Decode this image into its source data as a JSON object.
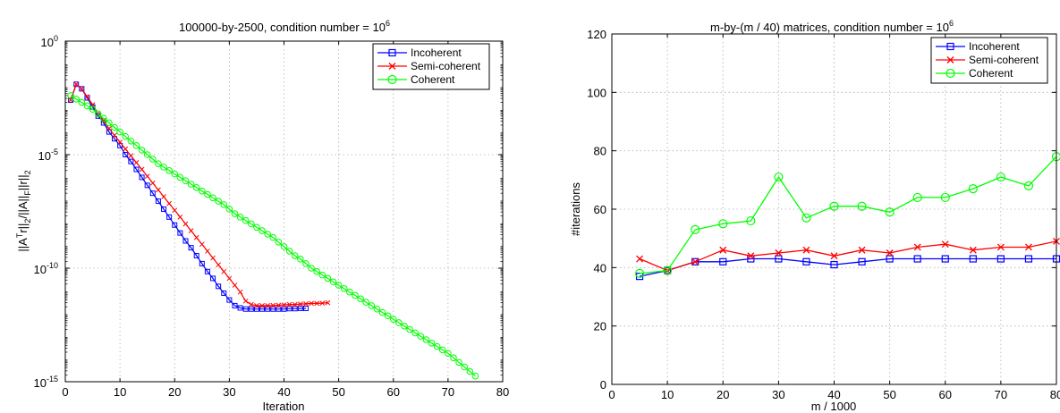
{
  "colors": {
    "incoherent": "#0000ff",
    "semi_coherent": "#ff0000",
    "coherent": "#00ff00"
  },
  "chart_data": [
    {
      "type": "line",
      "title": {
        "main": "100000-by-2500, condition number = 10",
        "sup": "6"
      },
      "xlabel": "Iteration",
      "ylabel": "||A^T r||_2/||A||_F||r||_2",
      "yscale": "log",
      "xlim": [
        0,
        80
      ],
      "ylim_exp": [
        -15,
        0
      ],
      "xticks": [
        "0",
        "10",
        "20",
        "30",
        "40",
        "50",
        "60",
        "70",
        "80"
      ],
      "yticks": [
        {
          "base": "10",
          "exp": "-15"
        },
        {
          "base": "10",
          "exp": "-10"
        },
        {
          "base": "10",
          "exp": "-5"
        },
        {
          "base": "10",
          "exp": "0"
        }
      ],
      "grid": true,
      "legend_position": "top-right",
      "series": [
        {
          "name": "Incoherent",
          "color": "#0000ff",
          "marker": "square",
          "x": [
            1,
            2,
            3,
            4,
            5,
            6,
            7,
            8,
            9,
            10,
            11,
            12,
            13,
            14,
            15,
            16,
            17,
            18,
            19,
            20,
            21,
            22,
            23,
            24,
            25,
            26,
            27,
            28,
            29,
            30,
            31,
            32,
            33,
            34,
            35,
            36,
            37,
            38,
            39,
            40,
            41,
            42,
            43,
            44
          ],
          "log10_y": [
            -2.6,
            -1.9,
            -2.1,
            -2.5,
            -2.9,
            -3.3,
            -3.6,
            -4.0,
            -4.3,
            -4.6,
            -5.0,
            -5.3,
            -5.65,
            -6.0,
            -6.35,
            -6.7,
            -7.05,
            -7.4,
            -7.75,
            -8.1,
            -8.45,
            -8.8,
            -9.1,
            -9.45,
            -9.8,
            -10.15,
            -10.45,
            -10.8,
            -11.1,
            -11.4,
            -11.65,
            -11.75,
            -11.8,
            -11.8,
            -11.8,
            -11.8,
            -11.8,
            -11.8,
            -11.8,
            -11.8,
            -11.78,
            -11.78,
            -11.77,
            -11.77
          ]
        },
        {
          "name": "Semi-coherent",
          "color": "#ff0000",
          "marker": "x",
          "x": [
            1,
            2,
            3,
            4,
            5,
            6,
            7,
            8,
            9,
            10,
            11,
            12,
            13,
            14,
            15,
            16,
            17,
            18,
            19,
            20,
            21,
            22,
            23,
            24,
            25,
            26,
            27,
            28,
            29,
            30,
            31,
            32,
            33,
            34,
            35,
            36,
            37,
            38,
            39,
            40,
            41,
            42,
            43,
            44,
            45,
            46,
            47,
            48
          ],
          "log10_y": [
            -2.6,
            -1.9,
            -2.1,
            -2.45,
            -2.8,
            -3.2,
            -3.5,
            -3.85,
            -4.15,
            -4.45,
            -4.75,
            -5.05,
            -5.35,
            -5.65,
            -5.95,
            -6.25,
            -6.55,
            -6.85,
            -7.15,
            -7.45,
            -7.75,
            -8.05,
            -8.35,
            -8.65,
            -8.95,
            -9.25,
            -9.55,
            -9.85,
            -10.15,
            -10.45,
            -10.75,
            -11.05,
            -11.45,
            -11.6,
            -11.65,
            -11.65,
            -11.65,
            -11.64,
            -11.63,
            -11.62,
            -11.6,
            -11.6,
            -11.58,
            -11.57,
            -11.55,
            -11.55,
            -11.54,
            -11.52
          ]
        },
        {
          "name": "Coherent",
          "color": "#00ff00",
          "marker": "circle",
          "x": [
            1,
            2,
            3,
            4,
            5,
            6,
            7,
            8,
            9,
            10,
            11,
            12,
            13,
            14,
            15,
            16,
            17,
            18,
            19,
            20,
            21,
            22,
            23,
            24,
            25,
            26,
            27,
            28,
            29,
            30,
            31,
            32,
            33,
            34,
            35,
            36,
            37,
            38,
            39,
            40,
            41,
            42,
            43,
            44,
            45,
            46,
            47,
            48,
            49,
            50,
            51,
            52,
            53,
            54,
            55,
            56,
            57,
            58,
            59,
            60,
            61,
            62,
            63,
            64,
            65,
            66,
            67,
            68,
            69,
            70,
            71,
            72,
            73,
            74,
            75
          ],
          "log10_y": [
            -2.4,
            -2.55,
            -2.7,
            -2.85,
            -3.0,
            -3.2,
            -3.4,
            -3.6,
            -3.8,
            -4.0,
            -4.2,
            -4.4,
            -4.6,
            -4.8,
            -5.0,
            -5.2,
            -5.4,
            -5.55,
            -5.7,
            -5.85,
            -6.0,
            -6.15,
            -6.3,
            -6.45,
            -6.6,
            -6.75,
            -6.9,
            -7.05,
            -7.2,
            -7.4,
            -7.6,
            -7.75,
            -7.9,
            -8.05,
            -8.2,
            -8.35,
            -8.5,
            -8.65,
            -8.85,
            -9.05,
            -9.25,
            -9.45,
            -9.6,
            -9.8,
            -10.0,
            -10.15,
            -10.3,
            -10.45,
            -10.6,
            -10.75,
            -10.9,
            -11.05,
            -11.2,
            -11.35,
            -11.5,
            -11.65,
            -11.8,
            -11.95,
            -12.1,
            -12.25,
            -12.4,
            -12.55,
            -12.7,
            -12.85,
            -13.0,
            -13.15,
            -13.3,
            -13.45,
            -13.6,
            -13.75,
            -13.95,
            -14.15,
            -14.35,
            -14.55,
            -14.75
          ]
        }
      ]
    },
    {
      "type": "line",
      "title": {
        "main": "m-by-(m / 40) matrices, condition number = 10",
        "sup": "6"
      },
      "xlabel": "m / 1000",
      "ylabel": "#iterations",
      "xlim": [
        0,
        80
      ],
      "ylim": [
        0,
        120
      ],
      "xticks": [
        "0",
        "10",
        "20",
        "30",
        "40",
        "50",
        "60",
        "70",
        "80"
      ],
      "yticks": [
        "0",
        "20",
        "40",
        "60",
        "80",
        "100",
        "120"
      ],
      "grid": true,
      "legend_position": "top-right",
      "x": [
        5,
        10,
        15,
        20,
        25,
        30,
        35,
        40,
        45,
        50,
        55,
        60,
        65,
        70,
        75,
        80
      ],
      "series": [
        {
          "name": "Incoherent",
          "color": "#0000ff",
          "marker": "square",
          "values": [
            37,
            39,
            42,
            42,
            43,
            43,
            42,
            41,
            42,
            43,
            43,
            43,
            43,
            43,
            43,
            43
          ]
        },
        {
          "name": "Semi-coherent",
          "color": "#ff0000",
          "marker": "x",
          "values": [
            43,
            39,
            42,
            46,
            44,
            45,
            46,
            44,
            46,
            45,
            47,
            48,
            46,
            47,
            47,
            49
          ]
        },
        {
          "name": "Coherent",
          "color": "#00ff00",
          "marker": "circle",
          "values": [
            38,
            39,
            53,
            55,
            56,
            71,
            57,
            61,
            61,
            59,
            64,
            64,
            67,
            71,
            68,
            78
          ]
        }
      ]
    }
  ]
}
